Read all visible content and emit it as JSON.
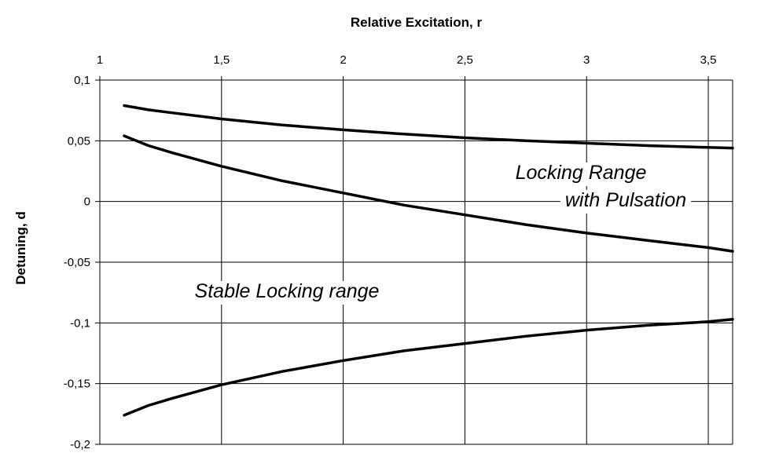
{
  "chart_data": {
    "type": "line",
    "xlabel": "Relative Excitation, r",
    "ylabel": "Detuning, d",
    "xlim": [
      1,
      3.6
    ],
    "ylim": [
      -0.2,
      0.1
    ],
    "x_ticks": [
      "1",
      "1,5",
      "2",
      "2,5",
      "3",
      "3,5"
    ],
    "y_ticks": [
      "0,1",
      "0,05",
      "0",
      "-0,05",
      "-0,1",
      "-0,15",
      "-0,2"
    ],
    "x_axis_position": "top",
    "grid": true,
    "legend": "none",
    "annotations": {
      "locking_line1": "Locking Range",
      "locking_line2": "with Pulsation",
      "stable": "Stable Locking range"
    },
    "series": [
      {
        "x": [
          1.1,
          1.2,
          1.3,
          1.5,
          1.75,
          2.0,
          2.25,
          2.5,
          2.75,
          3.0,
          3.25,
          3.5,
          3.6
        ],
        "y": [
          0.079,
          0.0755,
          0.073,
          0.068,
          0.063,
          0.059,
          0.0555,
          0.0525,
          0.05,
          0.048,
          0.046,
          0.0445,
          0.044
        ]
      },
      {
        "x": [
          1.1,
          1.2,
          1.3,
          1.5,
          1.75,
          2.0,
          2.25,
          2.5,
          2.75,
          3.0,
          3.25,
          3.5,
          3.6
        ],
        "y": [
          0.054,
          0.046,
          0.04,
          0.029,
          0.017,
          0.007,
          -0.003,
          -0.011,
          -0.019,
          -0.026,
          -0.032,
          -0.038,
          -0.041
        ]
      },
      {
        "x": [
          1.1,
          1.2,
          1.3,
          1.5,
          1.75,
          2.0,
          2.25,
          2.5,
          2.75,
          3.0,
          3.25,
          3.5,
          3.6
        ],
        "y": [
          -0.176,
          -0.168,
          -0.162,
          -0.151,
          -0.14,
          -0.131,
          -0.123,
          -0.117,
          -0.111,
          -0.106,
          -0.102,
          -0.099,
          -0.097
        ]
      }
    ]
  }
}
